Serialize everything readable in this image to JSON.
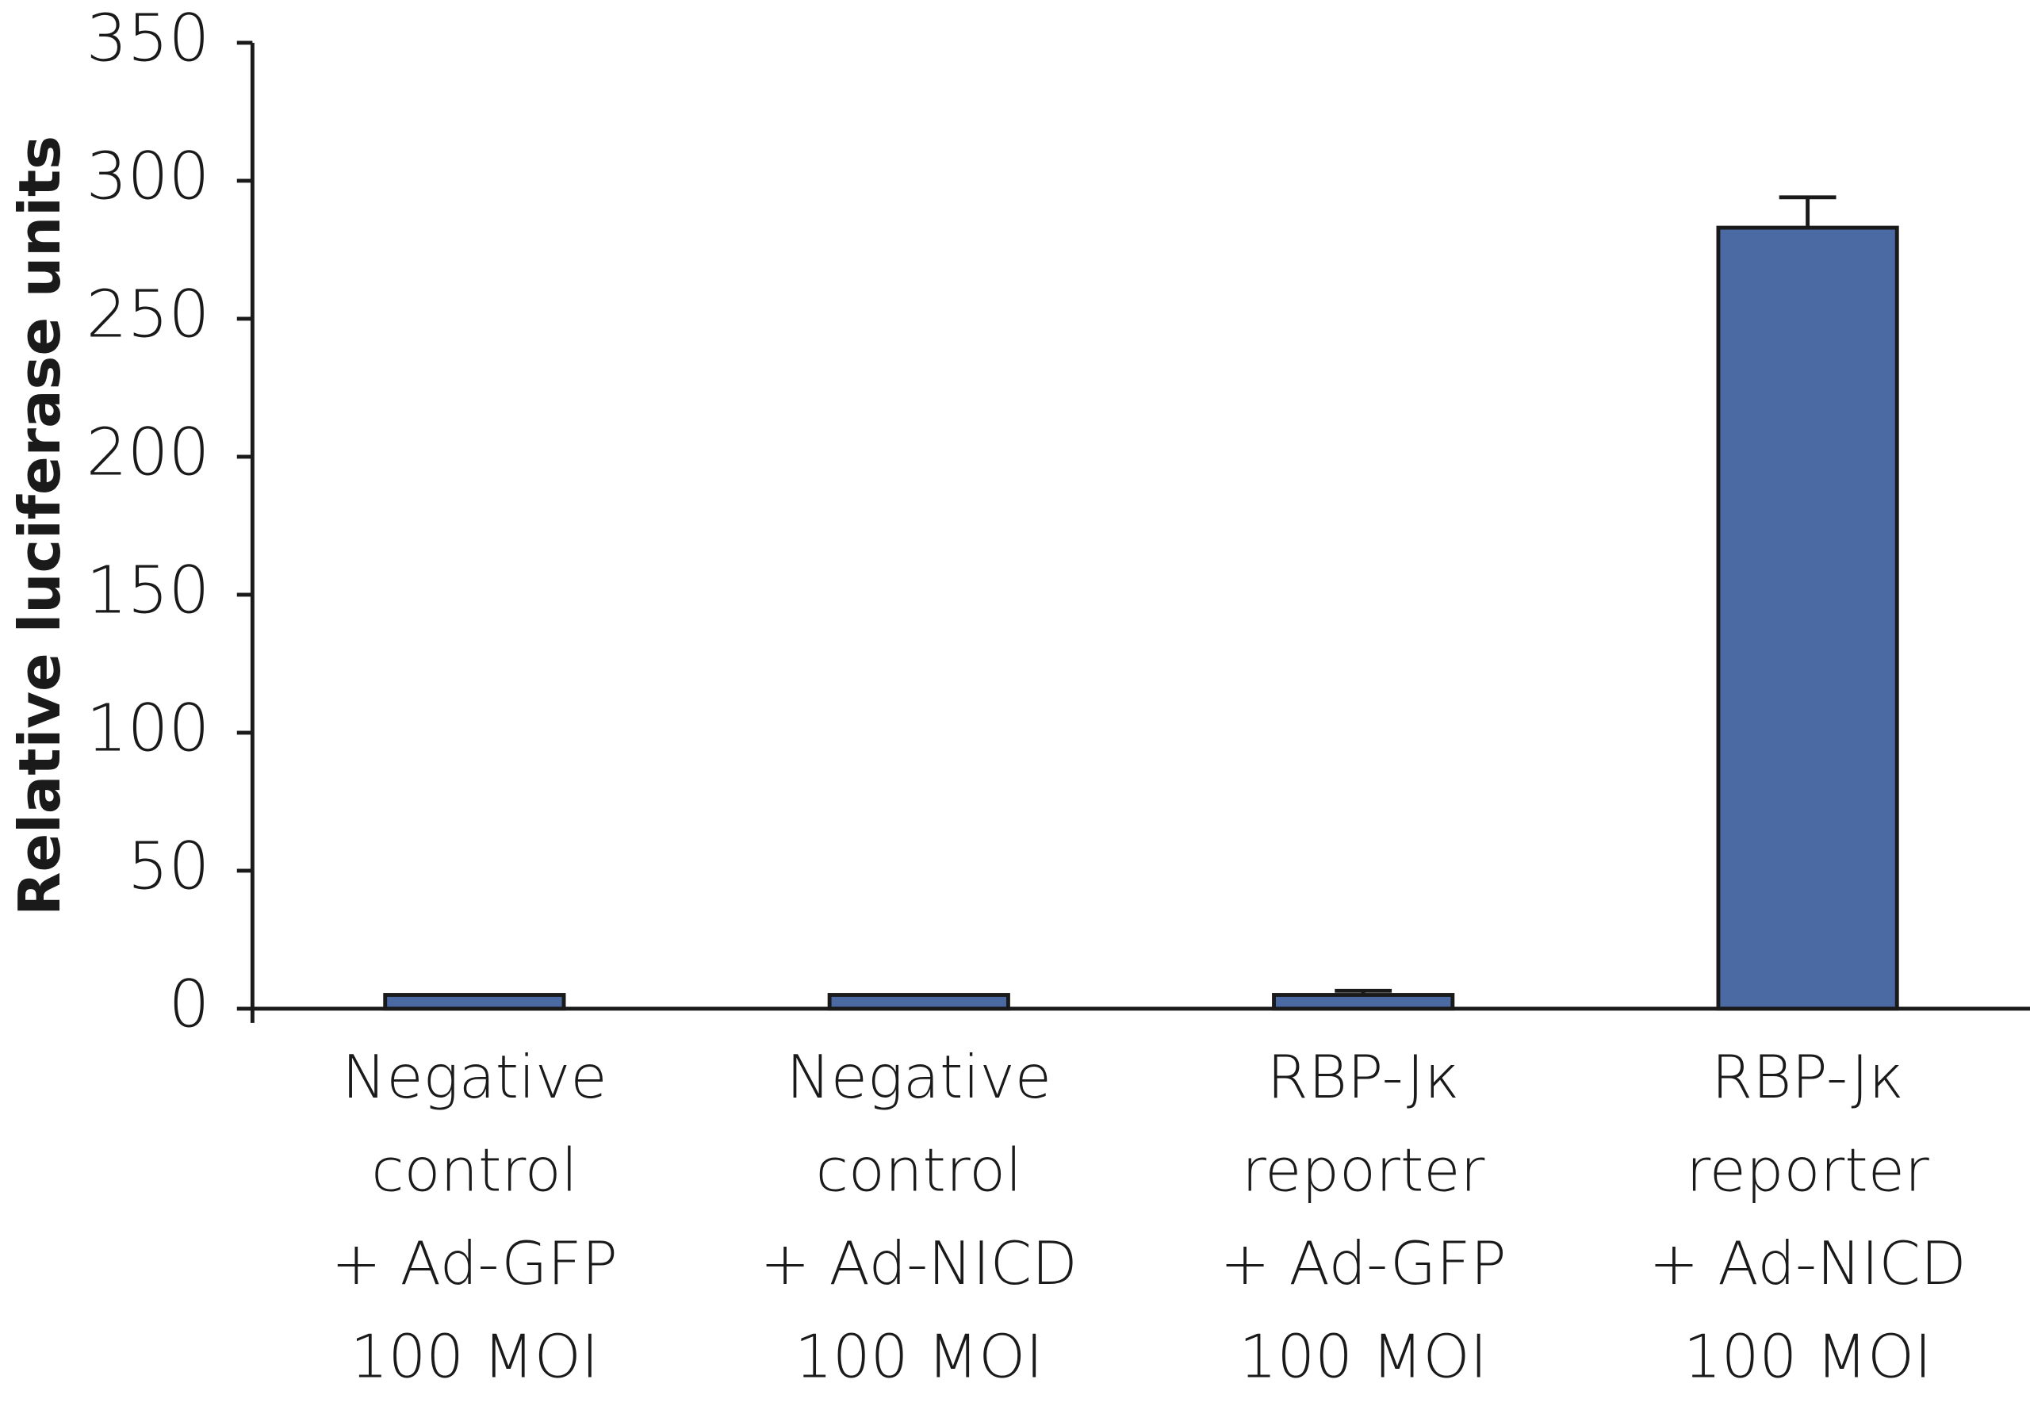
{
  "chart_data": {
    "type": "bar",
    "y_label": "Relative luciferase units",
    "categories": [
      [
        "Negative",
        "control",
        "+ Ad-GFP",
        "100 MOI"
      ],
      [
        "Negative",
        "control",
        "+ Ad-NICD",
        "100 MOI"
      ],
      [
        "RBP-Jκ",
        "reporter",
        "+ Ad-GFP",
        "100 MOI"
      ],
      [
        "RBP-Jκ",
        "reporter",
        "+ Ad-NICD",
        "100 MOI"
      ]
    ],
    "values": [
      5,
      5,
      5,
      283
    ],
    "errors": [
      0,
      0,
      1.5,
      11
    ],
    "color": "#4b69a3",
    "ylim": [
      0,
      350
    ],
    "yticks": [
      0,
      50,
      100,
      150,
      200,
      250,
      300,
      350
    ],
    "grid": false
  }
}
